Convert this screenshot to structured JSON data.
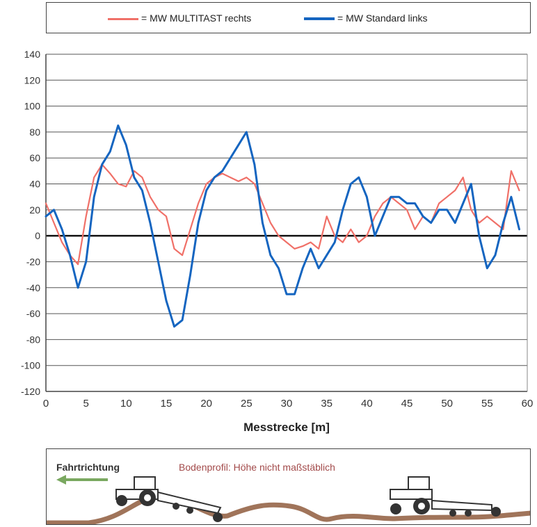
{
  "legend": {
    "red_label": "= MW MULTITAST rechts",
    "blue_label": "= MW Standard links"
  },
  "colors": {
    "red": "#f07068",
    "blue": "#1565c0",
    "soil": "#a0745a",
    "arrow": "#7aa860"
  },
  "chart_data": {
    "type": "line",
    "xlabel": "Messtrecke [m]",
    "ylabel": "",
    "xlim": [
      0,
      60
    ],
    "ylim": [
      -120,
      140
    ],
    "x_ticks": [
      0,
      5,
      10,
      15,
      20,
      25,
      30,
      35,
      40,
      45,
      50,
      55,
      60
    ],
    "y_ticks": [
      140,
      120,
      100,
      80,
      60,
      40,
      20,
      0,
      -20,
      -40,
      -60,
      -80,
      -100,
      -120
    ],
    "grid": true,
    "legend_position": "top",
    "series": [
      {
        "name": "MW MULTITAST rechts",
        "color": "#f07068",
        "x": [
          0,
          1,
          2,
          3,
          4,
          5,
          6,
          7,
          8,
          9,
          10,
          11,
          12,
          13,
          14,
          15,
          16,
          17,
          18,
          19,
          20,
          21,
          22,
          23,
          24,
          25,
          26,
          27,
          28,
          29,
          30,
          31,
          32,
          33,
          34,
          35,
          36,
          37,
          38,
          39,
          40,
          41,
          42,
          43,
          44,
          45,
          46,
          47,
          48,
          49,
          50,
          51,
          52,
          53,
          54,
          55,
          56,
          57,
          58,
          59
        ],
        "y": [
          25,
          10,
          -5,
          -15,
          -22,
          15,
          45,
          55,
          48,
          40,
          38,
          50,
          45,
          30,
          20,
          15,
          -10,
          -15,
          5,
          25,
          40,
          45,
          48,
          45,
          42,
          45,
          40,
          25,
          10,
          0,
          -5,
          -10,
          -8,
          -5,
          -10,
          15,
          0,
          -5,
          5,
          -5,
          0,
          15,
          25,
          30,
          25,
          20,
          5,
          15,
          10,
          25,
          30,
          35,
          45,
          20,
          10,
          15,
          10,
          5,
          50,
          35
        ]
      },
      {
        "name": "MW Standard links",
        "color": "#1565c0",
        "x": [
          0,
          1,
          2,
          3,
          4,
          5,
          6,
          7,
          8,
          9,
          10,
          11,
          12,
          13,
          14,
          15,
          16,
          17,
          18,
          19,
          20,
          21,
          22,
          23,
          24,
          25,
          26,
          27,
          28,
          29,
          30,
          31,
          32,
          33,
          34,
          35,
          36,
          37,
          38,
          39,
          40,
          41,
          42,
          43,
          44,
          45,
          46,
          47,
          48,
          49,
          50,
          51,
          52,
          53,
          54,
          55,
          56,
          57,
          58,
          59
        ],
        "y": [
          15,
          20,
          5,
          -15,
          -40,
          -20,
          30,
          55,
          65,
          85,
          70,
          45,
          35,
          10,
          -20,
          -50,
          -70,
          -65,
          -30,
          10,
          35,
          45,
          50,
          60,
          70,
          80,
          55,
          10,
          -15,
          -25,
          -45,
          -45,
          -25,
          -10,
          -25,
          -15,
          -5,
          20,
          40,
          45,
          30,
          0,
          15,
          30,
          30,
          25,
          25,
          15,
          10,
          20,
          20,
          10,
          25,
          40,
          0,
          -25,
          -15,
          10,
          30,
          5
        ]
      }
    ]
  },
  "bottom_panel": {
    "direction_label": "Fahrtrichtung",
    "profile_label": "Bodenprofil: Höhe nicht maßstäblich"
  }
}
